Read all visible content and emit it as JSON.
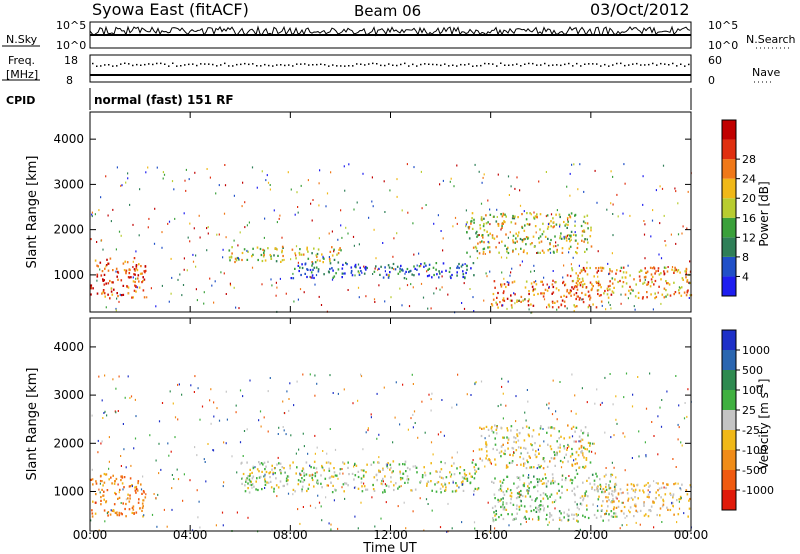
{
  "header": {
    "title": "Syowa East (fitACF)",
    "beam": "Beam 06",
    "date": "03/Oct/2012"
  },
  "nsky": {
    "label": "N.Sky",
    "top_tick": "10^5",
    "bottom_tick": "10^0",
    "right_label": "N.Search",
    "right_top_tick": "10^5",
    "right_bottom_tick": "10^0"
  },
  "freq": {
    "label_line1": "Freq.",
    "label_line2": "[MHz]",
    "top_tick": "18",
    "bottom_tick": "8",
    "right_label": "Nave",
    "right_top_tick": "60",
    "right_bottom_tick": "0"
  },
  "cpid": {
    "label": "CPID",
    "value": "normal (fast) 151 RF"
  },
  "axes": {
    "ylabel": "Slant Range [km]",
    "xlabel": "Time UT",
    "y_ticks": [
      "1000",
      "2000",
      "3000",
      "4000"
    ],
    "x_ticks": [
      "00:00",
      "04:00",
      "08:00",
      "12:00",
      "16:00",
      "20:00",
      "00:00"
    ]
  },
  "power_scale": {
    "label": "Power [dB]",
    "ticks": [
      "4",
      "8",
      "12",
      "16",
      "20",
      "24",
      "28"
    ],
    "colors": [
      "#1e1ef0",
      "#2050c8",
      "#2f7f58",
      "#3aa03a",
      "#b8cc30",
      "#f0b818",
      "#f07818",
      "#e03010",
      "#c00000"
    ]
  },
  "velocity_scale": {
    "label": "Velocity [m s^-1]",
    "ticks": [
      "1000",
      "500",
      "100",
      "25",
      "-25",
      "-100",
      "-500",
      "-1000"
    ],
    "colors": [
      "#1e30c8",
      "#2a66b0",
      "#2e8a50",
      "#40b040",
      "#c4c4c4",
      "#f0b818",
      "#f08c18",
      "#f05a10",
      "#e01a0a"
    ]
  },
  "chart_data": [
    {
      "type": "heatmap",
      "name": "power",
      "ylabel": "Slant Range [km]",
      "xlabel": "Time UT",
      "xlim_hours": [
        0,
        24
      ],
      "ylim_km": [
        180,
        4600
      ],
      "colorbar_label": "Power [dB]",
      "colorbar_range": [
        0,
        30
      ],
      "echo_bands": [
        {
          "t": [
            0,
            2.2
          ],
          "r": [
            500,
            1400
          ],
          "value": 24
        },
        {
          "t": [
            5.5,
            10.0
          ],
          "r": [
            1300,
            1650
          ],
          "value": 16
        },
        {
          "t": [
            8.0,
            15.5
          ],
          "r": [
            950,
            1300
          ],
          "value": 6
        },
        {
          "t": [
            15.0,
            20.0
          ],
          "r": [
            1500,
            2400
          ],
          "value": 16
        },
        {
          "t": [
            16.0,
            20.5
          ],
          "r": [
            300,
            900
          ],
          "value": 22
        },
        {
          "t": [
            19.0,
            24.0
          ],
          "r": [
            500,
            1200
          ],
          "value": 20
        }
      ]
    },
    {
      "type": "heatmap",
      "name": "velocity",
      "ylabel": "Slant Range [km]",
      "xlabel": "Time UT",
      "xlim_hours": [
        0,
        24
      ],
      "ylim_km": [
        180,
        4600
      ],
      "colorbar_label": "Velocity [m s^-1]",
      "colorbar_range": [
        -1000,
        1000
      ],
      "echo_bands": [
        {
          "t": [
            0,
            2.2
          ],
          "r": [
            500,
            1400
          ],
          "value": -500
        },
        {
          "t": [
            6.0,
            15.5
          ],
          "r": [
            1000,
            1650
          ],
          "value": 0
        },
        {
          "t": [
            15.5,
            20.0
          ],
          "r": [
            1500,
            2400
          ],
          "value": -100
        },
        {
          "t": [
            16.0,
            21.0
          ],
          "r": [
            400,
            1400
          ],
          "value": 100
        },
        {
          "t": [
            20.0,
            24.0
          ],
          "r": [
            500,
            1200
          ],
          "value": -200
        }
      ]
    }
  ]
}
